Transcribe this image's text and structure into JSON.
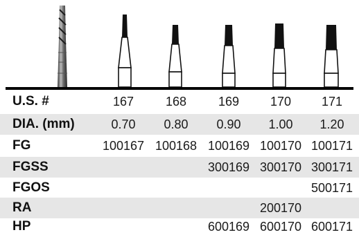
{
  "table": {
    "rows": [
      {
        "label": "U.S. #",
        "values": [
          "167",
          "168",
          "169",
          "170",
          "171"
        ]
      },
      {
        "label": "DIA. (mm)",
        "values": [
          "0.70",
          "0.80",
          "0.90",
          "1.00",
          "1.20"
        ]
      },
      {
        "label": "FG",
        "values": [
          "100167",
          "100168",
          "100169",
          "100170",
          "100171"
        ]
      },
      {
        "label": "FGSS",
        "values": [
          "",
          "",
          "300169",
          "300170",
          "300171"
        ]
      },
      {
        "label": "FGOS",
        "values": [
          "",
          "",
          "",
          "",
          "500171"
        ]
      },
      {
        "label": "RA",
        "values": [
          "",
          "",
          "",
          "200170",
          ""
        ]
      },
      {
        "label": "HP",
        "values": [
          "",
          "",
          "600169",
          "600170",
          "600171"
        ]
      }
    ]
  },
  "icons": {
    "bur_photo": "tapered-fissure-bur-photo",
    "bur_diagram": "tapered-fissure-bur-icon"
  },
  "colors": {
    "row_shade": "#e6e6e6",
    "rule": "#000000"
  }
}
